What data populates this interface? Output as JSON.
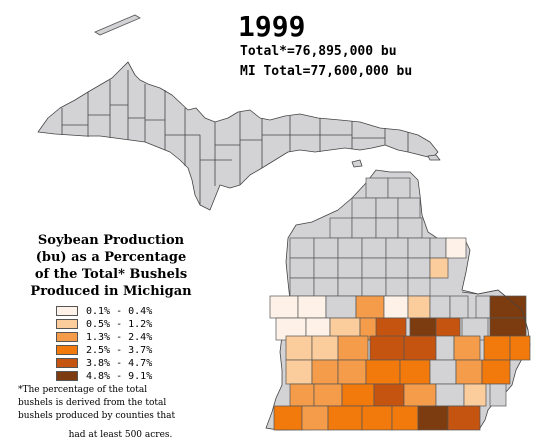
{
  "title": {
    "year": "1999",
    "total": "Total*=76,895,000 bu",
    "mi_total": "MI Total=77,600,000 bu"
  },
  "legend": {
    "title_lines": [
      "Soybean Production",
      "(bu) as a Percentage",
      "of the Total* Bushels",
      "Produced in Michigan"
    ],
    "classes": [
      {
        "label": "0.1% - 0.4%",
        "color": "#fdf1e8"
      },
      {
        "label": "0.5% - 1.2%",
        "color": "#fbcd9c"
      },
      {
        "label": "1.3% - 2.4%",
        "color": "#f59c4b"
      },
      {
        "label": "2.5% - 3.7%",
        "color": "#f27a0d"
      },
      {
        "label": "3.8% - 4.7%",
        "color": "#c55410"
      },
      {
        "label": "4.8% - 9.1%",
        "color": "#7d3c10"
      }
    ],
    "no_data_color": "#d3d3d6"
  },
  "footnote": {
    "lines": [
      "*The percentage of the total",
      "bushels is derived from the  total",
      "bushels produced by counties that"
    ],
    "last_line": "had at least 500 acres."
  }
}
